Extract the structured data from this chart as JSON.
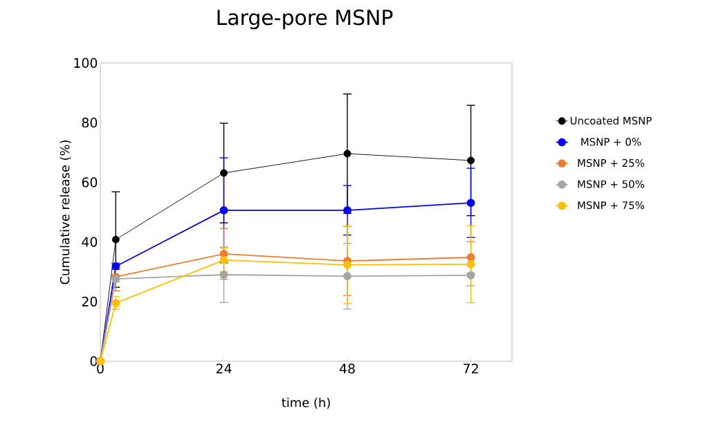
{
  "chart_data": {
    "type": "line",
    "title": "Large-pore MSNP",
    "xlabel": "time (h)",
    "ylabel": "Cumulative release (%)",
    "xlim": [
      0,
      80
    ],
    "ylim": [
      0,
      100
    ],
    "xticks": [
      0,
      24,
      48,
      72
    ],
    "yticks": [
      0,
      20,
      40,
      60,
      80,
      100
    ],
    "grid": false,
    "legend": "right",
    "marker": "circle",
    "line_style": "solid",
    "x": [
      0,
      3,
      24,
      48,
      72
    ],
    "series": [
      {
        "name": "Uncoated MSNP",
        "color": "#000000",
        "values": [
          0,
          40.8,
          63.1,
          69.6,
          67.3
        ],
        "errors": [
          null,
          16,
          16.7,
          20,
          18.5
        ]
      },
      {
        "name": "MSNP + 0%",
        "color": "#0000ff",
        "values": [
          0,
          31.8,
          50.6,
          50.6,
          53.1
        ],
        "errors": [
          null,
          1,
          17.6,
          8.3,
          11.6
        ]
      },
      {
        "name": "MSNP + 25%",
        "color": "#ed7d31",
        "values": [
          0,
          28.3,
          36.0,
          33.6,
          34.8
        ],
        "errors": [
          null,
          4.7,
          8.5,
          11.6,
          5.3
        ]
      },
      {
        "name": "MSNP + 50%",
        "color": "#a5a5a5",
        "values": [
          0,
          27.6,
          29.0,
          28.5,
          28.8
        ],
        "errors": [
          null,
          1,
          9.3,
          11,
          3.5
        ]
      },
      {
        "name": "MSNP + 75%",
        "color": "#ffc000",
        "values": [
          0,
          19.5,
          33.9,
          32.3,
          32.5
        ],
        "errors": [
          null,
          2.1,
          4,
          13,
          12.9
        ]
      }
    ]
  }
}
